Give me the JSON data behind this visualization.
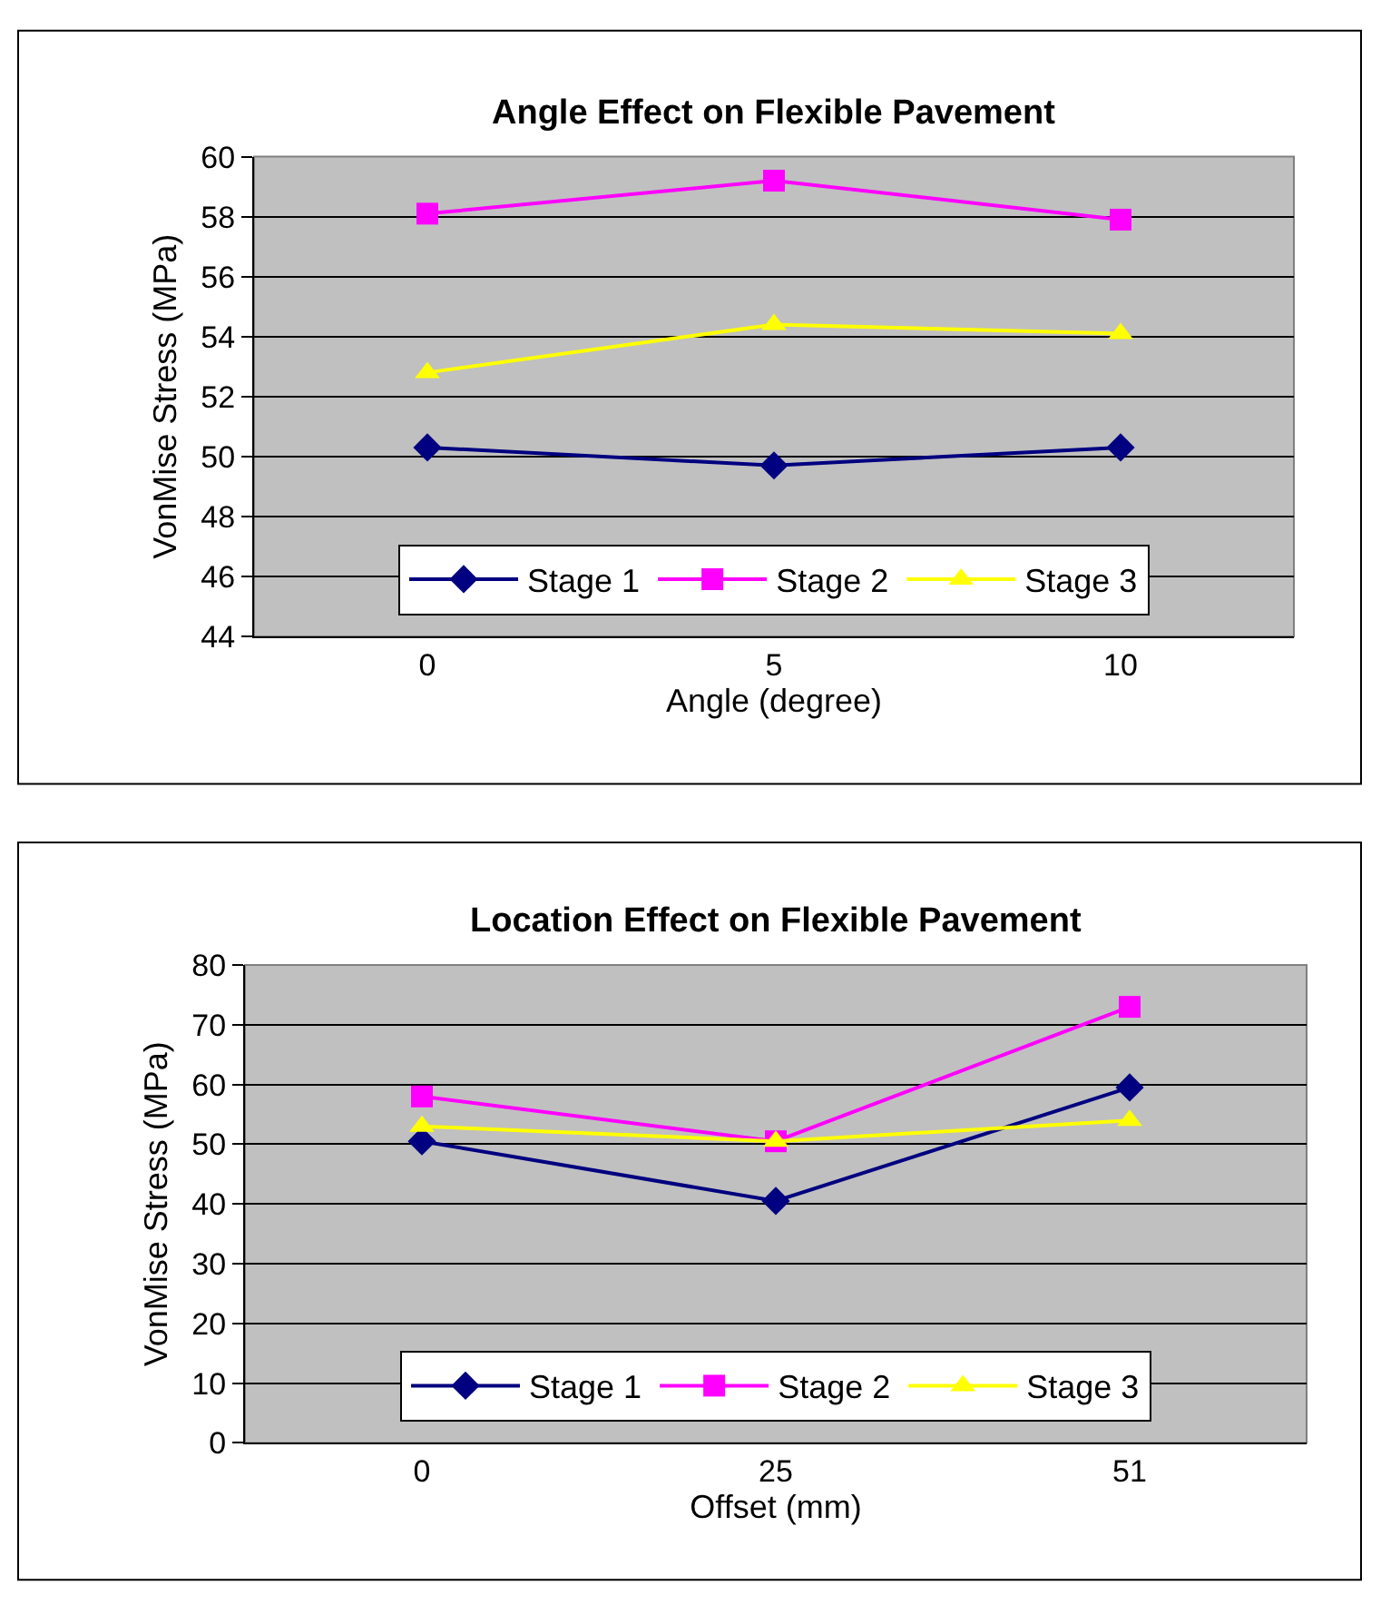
{
  "chart_data": [
    {
      "type": "line",
      "title": "Angle Effect on Flexible Pavement",
      "xlabel": "Angle (degree)",
      "ylabel": "VonMise Stress (MPa)",
      "categories": [
        "0",
        "5",
        "10"
      ],
      "ylim": [
        44,
        60
      ],
      "yticks": [
        44,
        46,
        48,
        50,
        52,
        54,
        56,
        58,
        60
      ],
      "grid": "y",
      "legend": "bottom",
      "series": [
        {
          "name": "Stage 1",
          "color": "#000080",
          "marker": "diamond",
          "values": [
            50.3,
            49.7,
            50.3
          ]
        },
        {
          "name": "Stage 2",
          "color": "#ff00ff",
          "marker": "square",
          "values": [
            58.1,
            59.2,
            57.9
          ]
        },
        {
          "name": "Stage 3",
          "color": "#ffff00",
          "marker": "triangle",
          "values": [
            52.8,
            54.4,
            54.1
          ]
        }
      ]
    },
    {
      "type": "line",
      "title": "Location Effect on Flexible Pavement",
      "xlabel": "Offset (mm)",
      "ylabel": "VonMise Stress (MPa)",
      "categories": [
        "0",
        "25",
        "51"
      ],
      "ylim": [
        0,
        80
      ],
      "yticks": [
        0,
        10,
        20,
        30,
        40,
        50,
        60,
        70,
        80
      ],
      "grid": "y",
      "legend": "bottom",
      "series": [
        {
          "name": "Stage 1",
          "color": "#000080",
          "marker": "diamond",
          "values": [
            50.5,
            40.5,
            59.5
          ]
        },
        {
          "name": "Stage 2",
          "color": "#ff00ff",
          "marker": "square",
          "values": [
            58,
            50.5,
            73
          ]
        },
        {
          "name": "Stage 3",
          "color": "#ffff00",
          "marker": "triangle",
          "values": [
            53,
            50.5,
            54
          ]
        }
      ]
    }
  ]
}
